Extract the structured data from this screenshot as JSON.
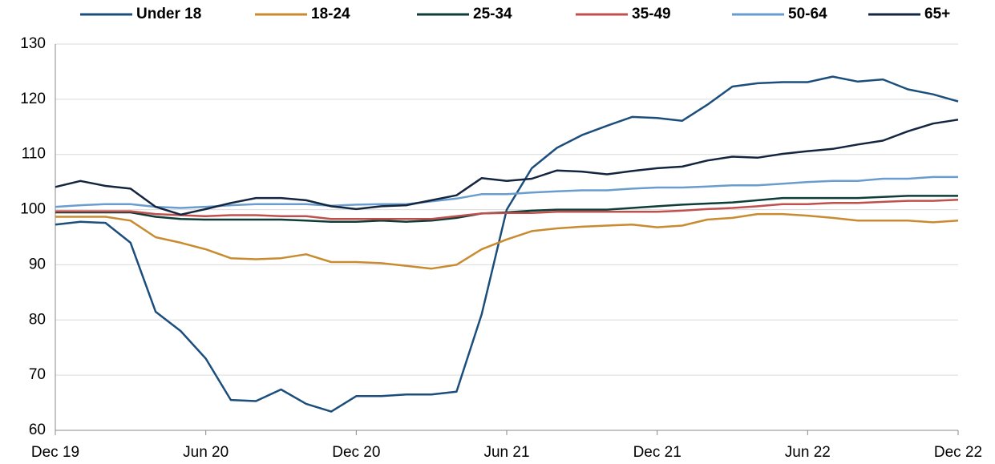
{
  "chart_data": {
    "type": "line",
    "categories": [
      "Dec 19",
      null,
      null,
      null,
      null,
      null,
      "Jun 20",
      null,
      null,
      null,
      null,
      null,
      "Dec 20",
      null,
      null,
      null,
      null,
      null,
      "Jun 21",
      null,
      null,
      null,
      null,
      null,
      "Dec 21",
      null,
      null,
      null,
      null,
      null,
      "Jun 22",
      null,
      null,
      null,
      null,
      null,
      "Dec 22"
    ],
    "series": [
      {
        "name": "Under 18",
        "color": "#1c4e7c",
        "values": [
          97.3,
          97.8,
          97.6,
          94,
          81.5,
          78,
          73,
          65.5,
          65.3,
          67.4,
          64.8,
          63.4,
          66.2,
          66.2,
          66.5,
          66.5,
          67,
          81,
          100,
          107.5,
          111.2,
          113.5,
          115.2,
          116.8,
          116.6,
          116.1,
          119,
          122.3,
          122.9,
          123.1,
          123.1,
          124.1,
          123.2,
          123.6,
          121.8,
          120.9,
          119.6
        ]
      },
      {
        "name": "18-24",
        "color": "#c98b30",
        "values": [
          98.7,
          98.7,
          98.7,
          98,
          95,
          94,
          92.8,
          91.2,
          91,
          91.2,
          91.9,
          90.5,
          90.5,
          90.3,
          89.8,
          89.3,
          90,
          92.8,
          94.6,
          96.1,
          96.6,
          96.9,
          97.1,
          97.3,
          96.8,
          97.1,
          98.2,
          98.5,
          99.2,
          99.2,
          98.9,
          98.5,
          98,
          98,
          98,
          97.7,
          98
        ]
      },
      {
        "name": "25-34",
        "color": "#0e3d38",
        "values": [
          99.5,
          99.5,
          99.5,
          99.5,
          98.7,
          98.3,
          98.2,
          98.2,
          98.2,
          98.2,
          98,
          97.8,
          97.8,
          98,
          97.8,
          98,
          98.5,
          99.3,
          99.5,
          99.8,
          100,
          100,
          100,
          100.3,
          100.6,
          100.9,
          101.1,
          101.3,
          101.7,
          102.1,
          102.1,
          102.1,
          102.1,
          102.3,
          102.5,
          102.5,
          102.5
        ]
      },
      {
        "name": "35-49",
        "color": "#c0504d",
        "values": [
          99.7,
          99.7,
          99.7,
          99.7,
          99.2,
          99,
          98.8,
          99,
          99,
          98.8,
          98.8,
          98.3,
          98.3,
          98.3,
          98.3,
          98.3,
          98.8,
          99.3,
          99.4,
          99.4,
          99.6,
          99.6,
          99.6,
          99.6,
          99.6,
          99.8,
          100.1,
          100.3,
          100.6,
          101,
          101,
          101.2,
          101.2,
          101.4,
          101.6,
          101.6,
          101.8
        ]
      },
      {
        "name": "50-64",
        "color": "#6a9dcf",
        "values": [
          100.5,
          100.8,
          101,
          101,
          100.5,
          100.3,
          100.5,
          100.8,
          101,
          101,
          101,
          100.7,
          100.9,
          101,
          101,
          101.5,
          102,
          102.8,
          102.8,
          103.1,
          103.3,
          103.5,
          103.5,
          103.8,
          104,
          104,
          104.2,
          104.4,
          104.4,
          104.7,
          105,
          105.2,
          105.2,
          105.6,
          105.6,
          105.9,
          105.9
        ]
      },
      {
        "name": "65+",
        "color": "#13253f",
        "values": [
          104.1,
          105.2,
          104.3,
          103.8,
          100.5,
          99.1,
          100.1,
          101.2,
          102.1,
          102.1,
          101.7,
          100.6,
          100.1,
          100.6,
          100.8,
          101.7,
          102.6,
          105.7,
          105.2,
          105.6,
          107.1,
          106.9,
          106.4,
          107,
          107.5,
          107.8,
          108.9,
          109.6,
          109.4,
          110.1,
          110.6,
          111,
          111.8,
          112.5,
          114.2,
          115.6,
          116.3
        ]
      }
    ],
    "ylim": [
      60,
      130
    ],
    "yticks": [
      60,
      70,
      80,
      90,
      100,
      110,
      120,
      130
    ],
    "grid": true,
    "legend": "top"
  }
}
